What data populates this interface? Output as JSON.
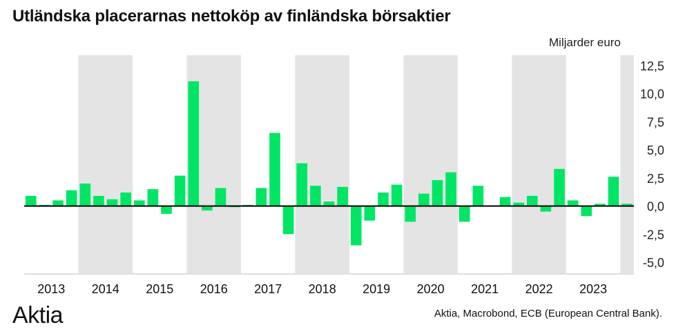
{
  "chart_data": {
    "type": "bar",
    "title": "Utländska placerarnas nettoköp av finländska börsaktier",
    "ylabel": "Miljarder euro",
    "xlabel": "",
    "ylim": [
      -5.0,
      12.5
    ],
    "yticks": [
      "12,5",
      "10,0",
      "7,5",
      "5,0",
      "2,5",
      "0,0",
      "-2,5",
      "-5,0"
    ],
    "ytick_values": [
      12.5,
      10,
      7.5,
      5,
      2.5,
      0,
      -2.5,
      -5
    ],
    "years": [
      "2013",
      "2014",
      "2015",
      "2016",
      "2017",
      "2018",
      "2019",
      "2020",
      "2021",
      "2022",
      "2023"
    ],
    "shaded_years": [
      "2014",
      "2016",
      "2018",
      "2020",
      "2022",
      "2024"
    ],
    "frequency": "quarterly",
    "start": "2013Q1",
    "values": [
      0.9,
      0.1,
      0.5,
      1.4,
      2.0,
      0.9,
      0.6,
      1.2,
      0.5,
      1.5,
      -0.7,
      2.7,
      11.1,
      -0.4,
      1.6,
      -0.1,
      0.1,
      1.6,
      6.5,
      -2.5,
      3.8,
      1.8,
      0.4,
      1.7,
      -3.5,
      -1.3,
      1.2,
      1.9,
      -1.4,
      1.1,
      2.3,
      3.0,
      -1.4,
      1.8,
      0.05,
      0.8,
      0.3,
      0.9,
      -0.5,
      3.3,
      0.5,
      -0.9,
      0.2,
      2.6,
      0.2
    ],
    "grid": false,
    "legend": "none"
  },
  "colors": {
    "bar": "#00e664",
    "shade": "#e4e4e4",
    "axis": "#000000"
  },
  "logo": "Aktia",
  "source": "Aktia, Macrobond, ECB (European Central Bank)."
}
